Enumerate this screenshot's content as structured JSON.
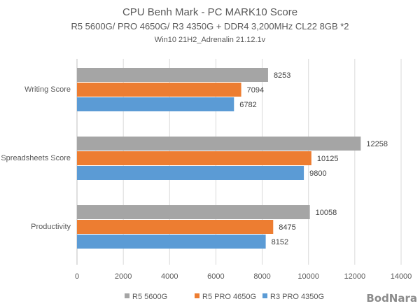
{
  "chart_data": {
    "type": "bar",
    "orientation": "horizontal",
    "title": "CPU Benh Mark - PC MARK10 Score",
    "subtitle": "R5 5600G/ PRO 4650G/ R3 4350G + DDR4 3,200MHz CL22 8GB *2",
    "subtitle2": "Win10 21H2_Adrenalin 21.12.1v",
    "categories": [
      "Writing Score",
      "Spreadsheets Score",
      "Productivity"
    ],
    "series": [
      {
        "name": "R5 5600G",
        "color": "#a5a5a5",
        "values": [
          8253,
          12258,
          10058
        ]
      },
      {
        "name": "R5 PRO 4650G",
        "color": "#ed7d31",
        "values": [
          7094,
          10125,
          8475
        ]
      },
      {
        "name": "R3 PRO 4350G",
        "color": "#5b9bd5",
        "values": [
          6782,
          9800,
          8152
        ]
      }
    ],
    "xlim": [
      0,
      14000
    ],
    "xticks": [
      "0",
      "2000",
      "4000",
      "6000",
      "8000",
      "10000",
      "12000",
      "14000"
    ],
    "grid": true,
    "legend": "bottom"
  },
  "watermark": "BodNara"
}
